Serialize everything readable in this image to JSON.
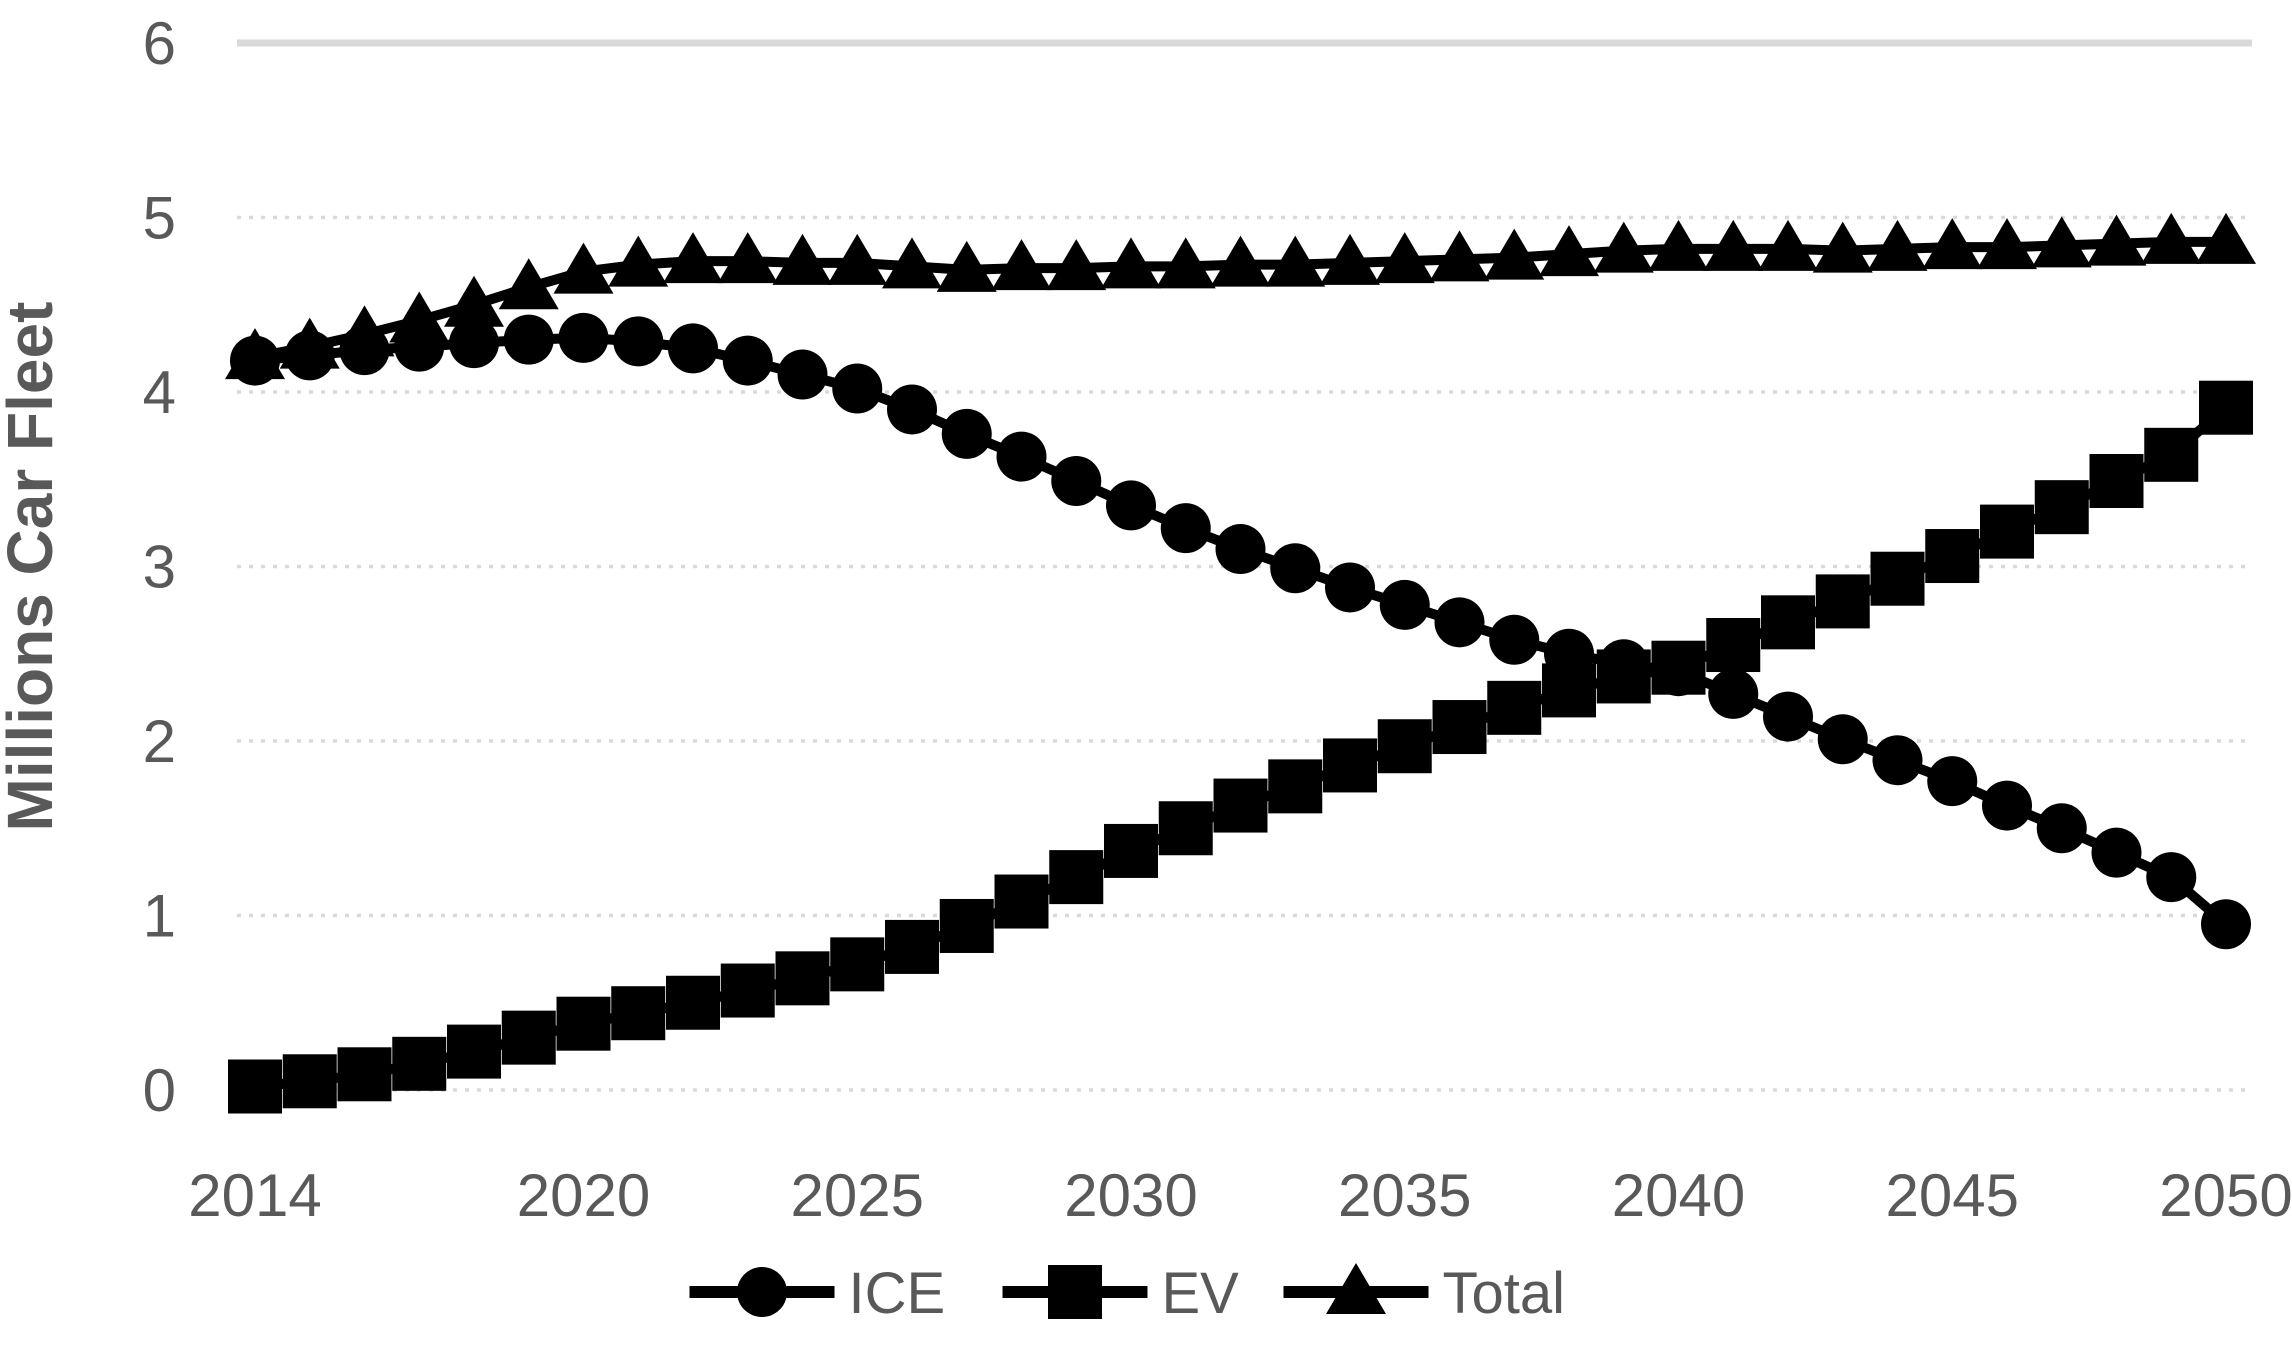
{
  "chart_data": {
    "type": "line",
    "title": "",
    "xlabel": "",
    "ylabel": "Millions Car Fleet",
    "x": [
      2014,
      2015,
      2016,
      2017,
      2018,
      2019,
      2020,
      2021,
      2022,
      2023,
      2024,
      2025,
      2026,
      2027,
      2028,
      2029,
      2030,
      2031,
      2032,
      2033,
      2034,
      2035,
      2036,
      2037,
      2038,
      2039,
      2040,
      2041,
      2042,
      2043,
      2044,
      2045,
      2046,
      2047,
      2048,
      2049,
      2050
    ],
    "series": [
      {
        "name": "ICE",
        "marker": "circle",
        "values": [
          4.18,
          4.21,
          4.24,
          4.26,
          4.28,
          4.3,
          4.31,
          4.29,
          4.25,
          4.18,
          4.1,
          4.02,
          3.9,
          3.76,
          3.63,
          3.49,
          3.35,
          3.22,
          3.1,
          2.99,
          2.88,
          2.78,
          2.68,
          2.58,
          2.5,
          2.44,
          2.4,
          2.27,
          2.14,
          2.01,
          1.89,
          1.77,
          1.63,
          1.5,
          1.36,
          1.22,
          0.95
        ]
      },
      {
        "name": "EV",
        "marker": "square",
        "values": [
          0.02,
          0.05,
          0.09,
          0.15,
          0.22,
          0.3,
          0.38,
          0.44,
          0.5,
          0.57,
          0.64,
          0.72,
          0.82,
          0.94,
          1.08,
          1.22,
          1.37,
          1.5,
          1.63,
          1.74,
          1.86,
          1.97,
          2.08,
          2.19,
          2.29,
          2.37,
          2.42,
          2.55,
          2.68,
          2.8,
          2.93,
          3.06,
          3.2,
          3.34,
          3.49,
          3.64,
          3.91
        ]
      },
      {
        "name": "Total",
        "marker": "triangle",
        "values": [
          4.2,
          4.26,
          4.33,
          4.41,
          4.5,
          4.6,
          4.69,
          4.73,
          4.75,
          4.75,
          4.74,
          4.74,
          4.72,
          4.7,
          4.71,
          4.71,
          4.72,
          4.72,
          4.73,
          4.73,
          4.74,
          4.75,
          4.76,
          4.77,
          4.79,
          4.81,
          4.82,
          4.82,
          4.82,
          4.81,
          4.82,
          4.83,
          4.83,
          4.84,
          4.85,
          4.86,
          4.86
        ]
      }
    ],
    "ylim": [
      0,
      6
    ],
    "xlim": [
      2014,
      2050
    ],
    "yticks": [
      0,
      1,
      2,
      3,
      4,
      5,
      6
    ],
    "xticks": [
      2014,
      2020,
      2025,
      2030,
      2035,
      2040,
      2045,
      2050
    ],
    "grid": "horizontal",
    "legend_position": "bottom-center",
    "colors": {
      "series": "#000000",
      "grid": "#d9d9d9",
      "text": "#595959",
      "background": "#ffffff"
    }
  }
}
